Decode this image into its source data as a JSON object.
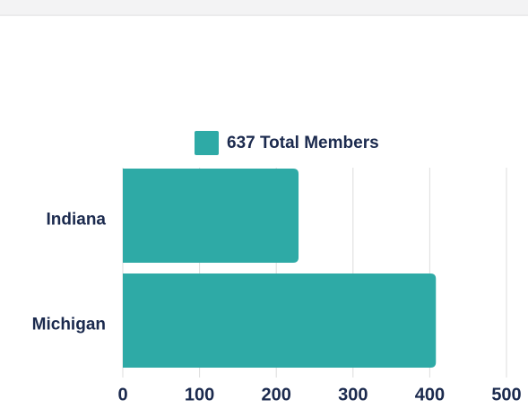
{
  "chart_data": {
    "type": "bar",
    "orientation": "horizontal",
    "categories": [
      "Indiana",
      "Michigan"
    ],
    "series": [
      {
        "name": "637 Total Members",
        "color": "#2eaaa6",
        "values": [
          229,
          408
        ]
      }
    ],
    "xlim": [
      0,
      500
    ],
    "xticks": [
      0,
      100,
      200,
      300,
      400,
      500
    ],
    "grid": true,
    "legend": "top"
  }
}
